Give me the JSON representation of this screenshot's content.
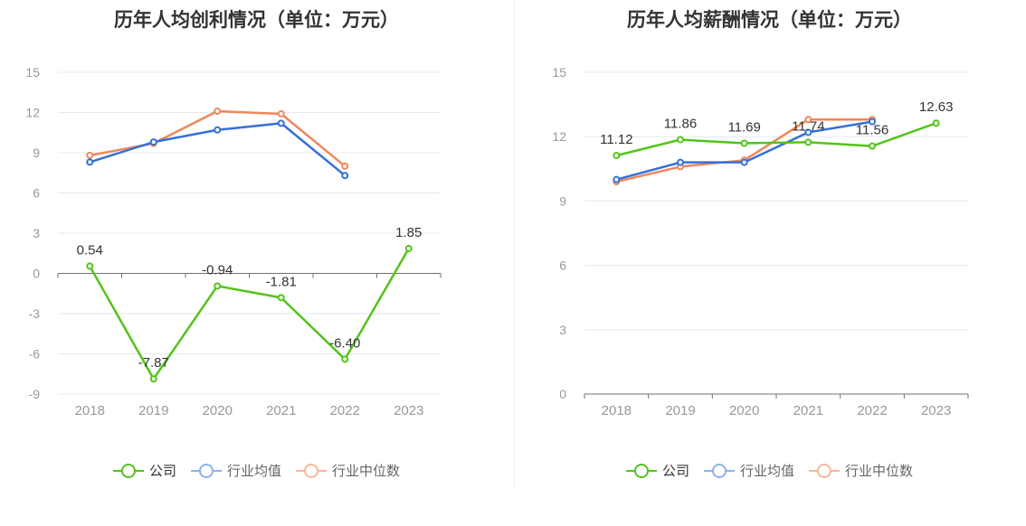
{
  "chart_data": [
    {
      "type": "line",
      "title": "历年人均创利情况（单位：万元）",
      "categories": [
        "2018",
        "2019",
        "2020",
        "2021",
        "2022",
        "2023"
      ],
      "ylim": [
        -9,
        15
      ],
      "yticks": [
        -9,
        -6,
        -3,
        0,
        3,
        6,
        9,
        12,
        15
      ],
      "grid": true,
      "legend_position": "bottom",
      "series": [
        {
          "name": "公司",
          "color": "#52c41a",
          "values": [
            0.54,
            -7.87,
            -0.94,
            -1.81,
            -6.4,
            1.85
          ],
          "labels": [
            "0.54",
            "-7.87",
            "-0.94",
            "-1.81",
            "-6.40",
            "1.85"
          ]
        },
        {
          "name": "行业均值",
          "color": "#3370d8",
          "values": [
            8.3,
            9.8,
            10.7,
            11.2,
            7.3,
            null
          ]
        },
        {
          "name": "行业中位数",
          "color": "#f0865a",
          "values": [
            8.8,
            9.7,
            12.1,
            11.9,
            8.0,
            null
          ]
        }
      ]
    },
    {
      "type": "line",
      "title": "历年人均薪酬情况（单位：万元）",
      "categories": [
        "2018",
        "2019",
        "2020",
        "2021",
        "2022",
        "2023"
      ],
      "ylim": [
        0,
        15
      ],
      "yticks": [
        0,
        3,
        6,
        9,
        12,
        15
      ],
      "grid": true,
      "legend_position": "bottom",
      "series": [
        {
          "name": "公司",
          "color": "#52c41a",
          "values": [
            11.12,
            11.86,
            11.69,
            11.74,
            11.56,
            12.63
          ],
          "labels": [
            "11.12",
            "11.86",
            "11.69",
            "11.74",
            "11.56",
            "12.63"
          ]
        },
        {
          "name": "行业均值",
          "color": "#3370d8",
          "values": [
            10.0,
            10.8,
            10.8,
            12.2,
            12.7,
            null
          ]
        },
        {
          "name": "行业中位数",
          "color": "#f0865a",
          "values": [
            9.9,
            10.6,
            10.9,
            12.8,
            12.8,
            null
          ]
        }
      ]
    }
  ],
  "legend_colors": {
    "公司": "#52c41a",
    "行业均值": "#8fb0ec",
    "行业中位数": "#f7b79a"
  }
}
